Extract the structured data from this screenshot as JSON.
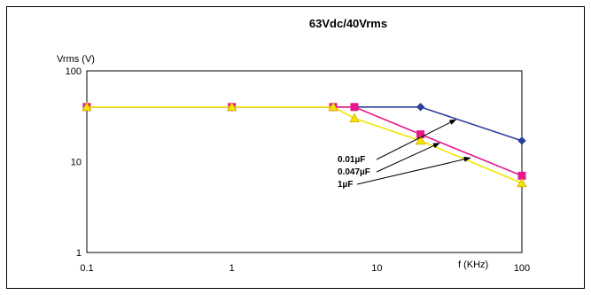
{
  "chart_data": {
    "type": "line",
    "title": "63Vdc/40Vrms",
    "xlabel": "f (KHz)",
    "ylabel": "Vrms (V)",
    "x_scale": "log",
    "y_scale": "log",
    "xlim": [
      0.1,
      100
    ],
    "ylim": [
      1,
      100
    ],
    "x_ticks": [
      "0.1",
      "1",
      "10",
      "100"
    ],
    "y_ticks": [
      "1",
      "10",
      "100"
    ],
    "grid": true,
    "series": [
      {
        "name": "0.01µF",
        "color": "#2b3f99",
        "marker": "diamond",
        "x": [
          0.1,
          1,
          5,
          7,
          20,
          100
        ],
        "y": [
          40,
          40,
          40,
          40,
          40,
          17
        ]
      },
      {
        "name": "0.047µF",
        "color": "#e8178a",
        "marker": "square",
        "x": [
          0.1,
          1,
          5,
          7,
          20,
          100
        ],
        "y": [
          40,
          40,
          40,
          40,
          20,
          7
        ]
      },
      {
        "name": "1µF",
        "color": "#f2e600",
        "marker": "triangle",
        "x": [
          0.1,
          1,
          5,
          7,
          20,
          100
        ],
        "y": [
          40,
          40,
          40,
          30,
          17,
          5.8
        ]
      }
    ],
    "annotations": [
      {
        "text": "0.01µF",
        "arrow_to": [
          35,
          29
        ]
      },
      {
        "text": "0.047µF",
        "arrow_to": [
          27,
          16
        ]
      },
      {
        "text": "1µF",
        "arrow_to": [
          44,
          11
        ]
      }
    ]
  }
}
